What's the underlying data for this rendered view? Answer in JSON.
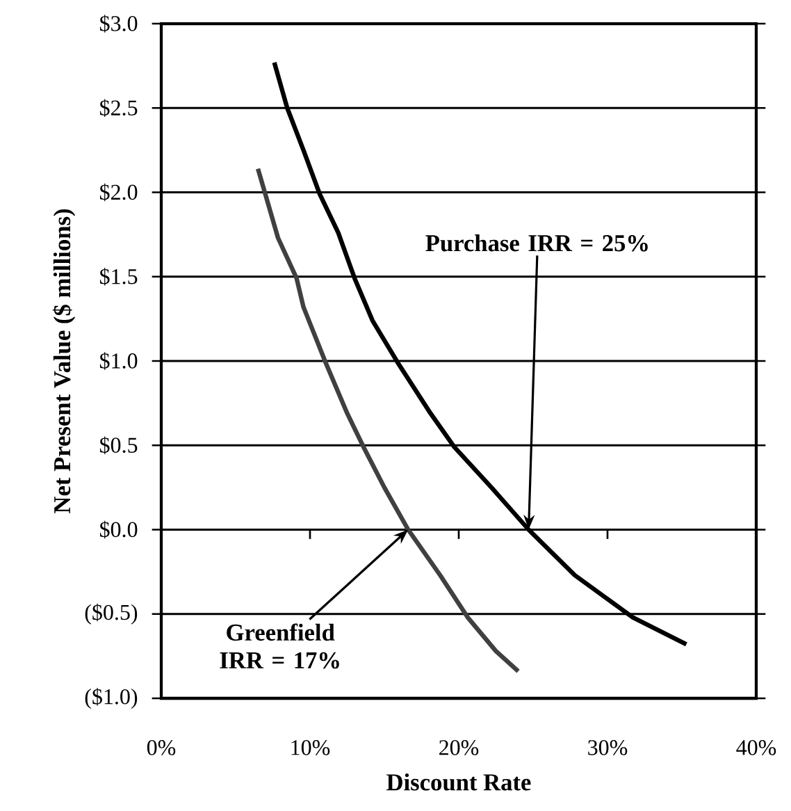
{
  "chart_data": {
    "type": "line",
    "xlabel": "Discount Rate",
    "ylabel": "Net Present Value ($ millions)",
    "series": [
      {
        "name": null,
        "color": "#000000",
        "x": [
          7.6,
          8.47,
          9.56,
          10.65,
          11.9,
          13.0,
          14.2,
          15.97,
          18.1,
          19.7,
          22.2,
          24.7,
          27.8,
          31.7,
          35.3
        ],
        "values": [
          2.77,
          2.5,
          2.25,
          1.99,
          1.76,
          1.49,
          1.24,
          0.98,
          0.69,
          0.49,
          0.25,
          0.0,
          -0.27,
          -0.52,
          -0.68
        ]
      },
      {
        "name": null,
        "color": "#404040",
        "x": [
          6.5,
          7.85,
          9.1,
          9.56,
          11.1,
          12.5,
          13.6,
          15.0,
          16.6,
          18.75,
          20.6,
          22.5,
          24.0
        ],
        "values": [
          2.14,
          1.73,
          1.49,
          1.32,
          0.98,
          0.69,
          0.49,
          0.25,
          0.0,
          -0.27,
          -0.52,
          -0.72,
          -0.84
        ]
      }
    ],
    "xlim": [
      0,
      40
    ],
    "xticks": [
      {
        "value": 0,
        "label": "0%"
      },
      {
        "value": 10,
        "label": "10%"
      },
      {
        "value": 20,
        "label": "20%"
      },
      {
        "value": 30,
        "label": "30%"
      },
      {
        "value": 40,
        "label": "40%"
      }
    ],
    "ylim": [
      -1.0,
      3.0
    ],
    "yticks": [
      {
        "value": -1.0,
        "label": "($1.0)"
      },
      {
        "value": -0.5,
        "label": "($0.5)"
      },
      {
        "value": 0.0,
        "label": "$0.0"
      },
      {
        "value": 0.5,
        "label": "$0.5"
      },
      {
        "value": 1.0,
        "label": "$1.0"
      },
      {
        "value": 1.5,
        "label": "$1.5"
      },
      {
        "value": 2.0,
        "label": "$2.0"
      },
      {
        "value": 2.5,
        "label": "$2.5"
      },
      {
        "value": 3.0,
        "label": "$3.0"
      }
    ],
    "grid": "y",
    "marker": "none",
    "line_style": "solid",
    "annotations": [
      {
        "text": "Purchase IRR = 25%",
        "x": 24.7,
        "y": 0.0
      },
      {
        "text": "Greenfield IRR = 17%",
        "x": 16.6,
        "y": 0.0
      }
    ]
  }
}
